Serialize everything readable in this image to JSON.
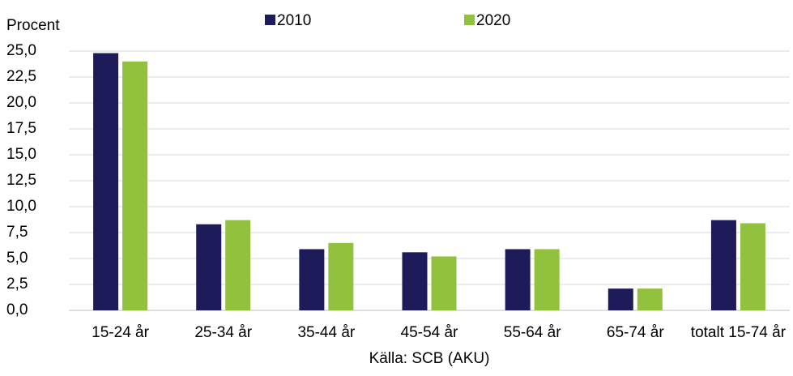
{
  "chart_data": {
    "type": "bar",
    "y_label": "Procent",
    "x_label": "Källa: SCB (AKU)",
    "categories": [
      "15-24 år",
      "25-34 år",
      "35-44 år",
      "45-54 år",
      "55-64 år",
      "65-74 år",
      "totalt 15-74 år"
    ],
    "series": [
      {
        "name": "2010",
        "color": "#1e1b5a",
        "values": [
          24.8,
          8.3,
          5.9,
          5.6,
          5.9,
          2.1,
          8.7
        ]
      },
      {
        "name": "2020",
        "color": "#92c13e",
        "values": [
          24.0,
          8.7,
          6.5,
          5.2,
          5.9,
          2.1,
          8.4
        ]
      }
    ],
    "ylim": [
      0,
      25
    ],
    "yticks": [
      {
        "value": 0,
        "label": "0,0"
      },
      {
        "value": 2.5,
        "label": "2,5"
      },
      {
        "value": 5,
        "label": "5,0"
      },
      {
        "value": 7.5,
        "label": "7,5"
      },
      {
        "value": 10,
        "label": "10,0"
      },
      {
        "value": 12.5,
        "label": "12,5"
      },
      {
        "value": 15,
        "label": "15,0"
      },
      {
        "value": 17.5,
        "label": "17,5"
      },
      {
        "value": 20,
        "label": "20,0"
      },
      {
        "value": 22.5,
        "label": "22,5"
      },
      {
        "value": 25,
        "label": "25,0"
      }
    ],
    "grid": true,
    "legend": "top"
  }
}
